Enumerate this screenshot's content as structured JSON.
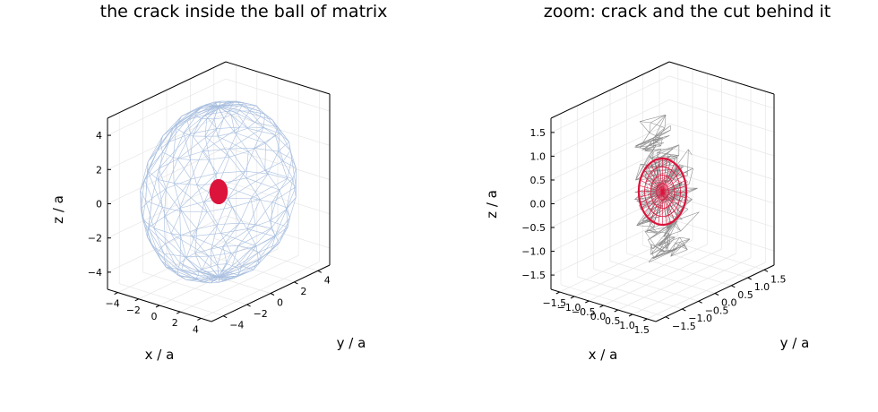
{
  "chart_data": [
    {
      "type": "3d-wireframe",
      "title": "the crack inside the ball of matrix",
      "xlabel": "x / a",
      "ylabel": "y / a",
      "zlabel": "z / a",
      "xlim": [
        -5,
        5
      ],
      "ylim": [
        -5,
        5
      ],
      "zlim": [
        -5,
        5
      ],
      "xticks": [
        -4,
        -2,
        0,
        2,
        4
      ],
      "yticks": [
        -4,
        -2,
        0,
        2,
        4
      ],
      "zticks": [
        -4,
        -2,
        0,
        2,
        4
      ],
      "xtick_labels": [
        "−4",
        "−2",
        "0",
        "2",
        "4"
      ],
      "ytick_labels": [
        "−4",
        "−2",
        "0",
        "2",
        "4"
      ],
      "ztick_labels": [
        "−4",
        "−2",
        "0",
        "2",
        "4"
      ],
      "grid": true,
      "series": [
        {
          "kind": "sphere-mesh",
          "radius": 5,
          "color": "#a9bfdf"
        },
        {
          "kind": "crack-disk",
          "radius": 1,
          "center": [
            0,
            0,
            0
          ],
          "tilt_deg": -20,
          "color": "#dc143c"
        }
      ]
    },
    {
      "type": "3d-wireframe",
      "title": "zoom: crack and the cut behind it",
      "xlabel": "x / a",
      "ylabel": "y / a",
      "zlabel": "z / a",
      "xlim": [
        -1.8,
        1.8
      ],
      "ylim": [
        -1.8,
        1.8
      ],
      "zlim": [
        -1.8,
        1.8
      ],
      "xticks": [
        -1.5,
        -1.0,
        -0.5,
        0.0,
        0.5,
        1.0,
        1.5
      ],
      "yticks": [
        -1.5,
        -1.0,
        -0.5,
        0.0,
        0.5,
        1.0,
        1.5
      ],
      "zticks": [
        -1.5,
        -1.0,
        -0.5,
        0.0,
        0.5,
        1.0,
        1.5
      ],
      "xtick_labels": [
        "−1.5",
        "−1.0",
        "−0.5",
        "0.0",
        "0.5",
        "1.0",
        "1.5"
      ],
      "ytick_labels": [
        "−1.5",
        "−1.0",
        "−0.5",
        "0.0",
        "0.5",
        "1.0",
        "1.5"
      ],
      "ztick_labels": [
        "−1.5",
        "−1.0",
        "−0.5",
        "0.0",
        "0.5",
        "1.0",
        "1.5"
      ],
      "grid": true,
      "series": [
        {
          "kind": "cut-mesh",
          "color": "#8c8c8c"
        },
        {
          "kind": "crack-disk",
          "radius": 1,
          "center": [
            0,
            0,
            0
          ],
          "tilt_deg": -20,
          "color": "#dc143c"
        }
      ]
    }
  ]
}
